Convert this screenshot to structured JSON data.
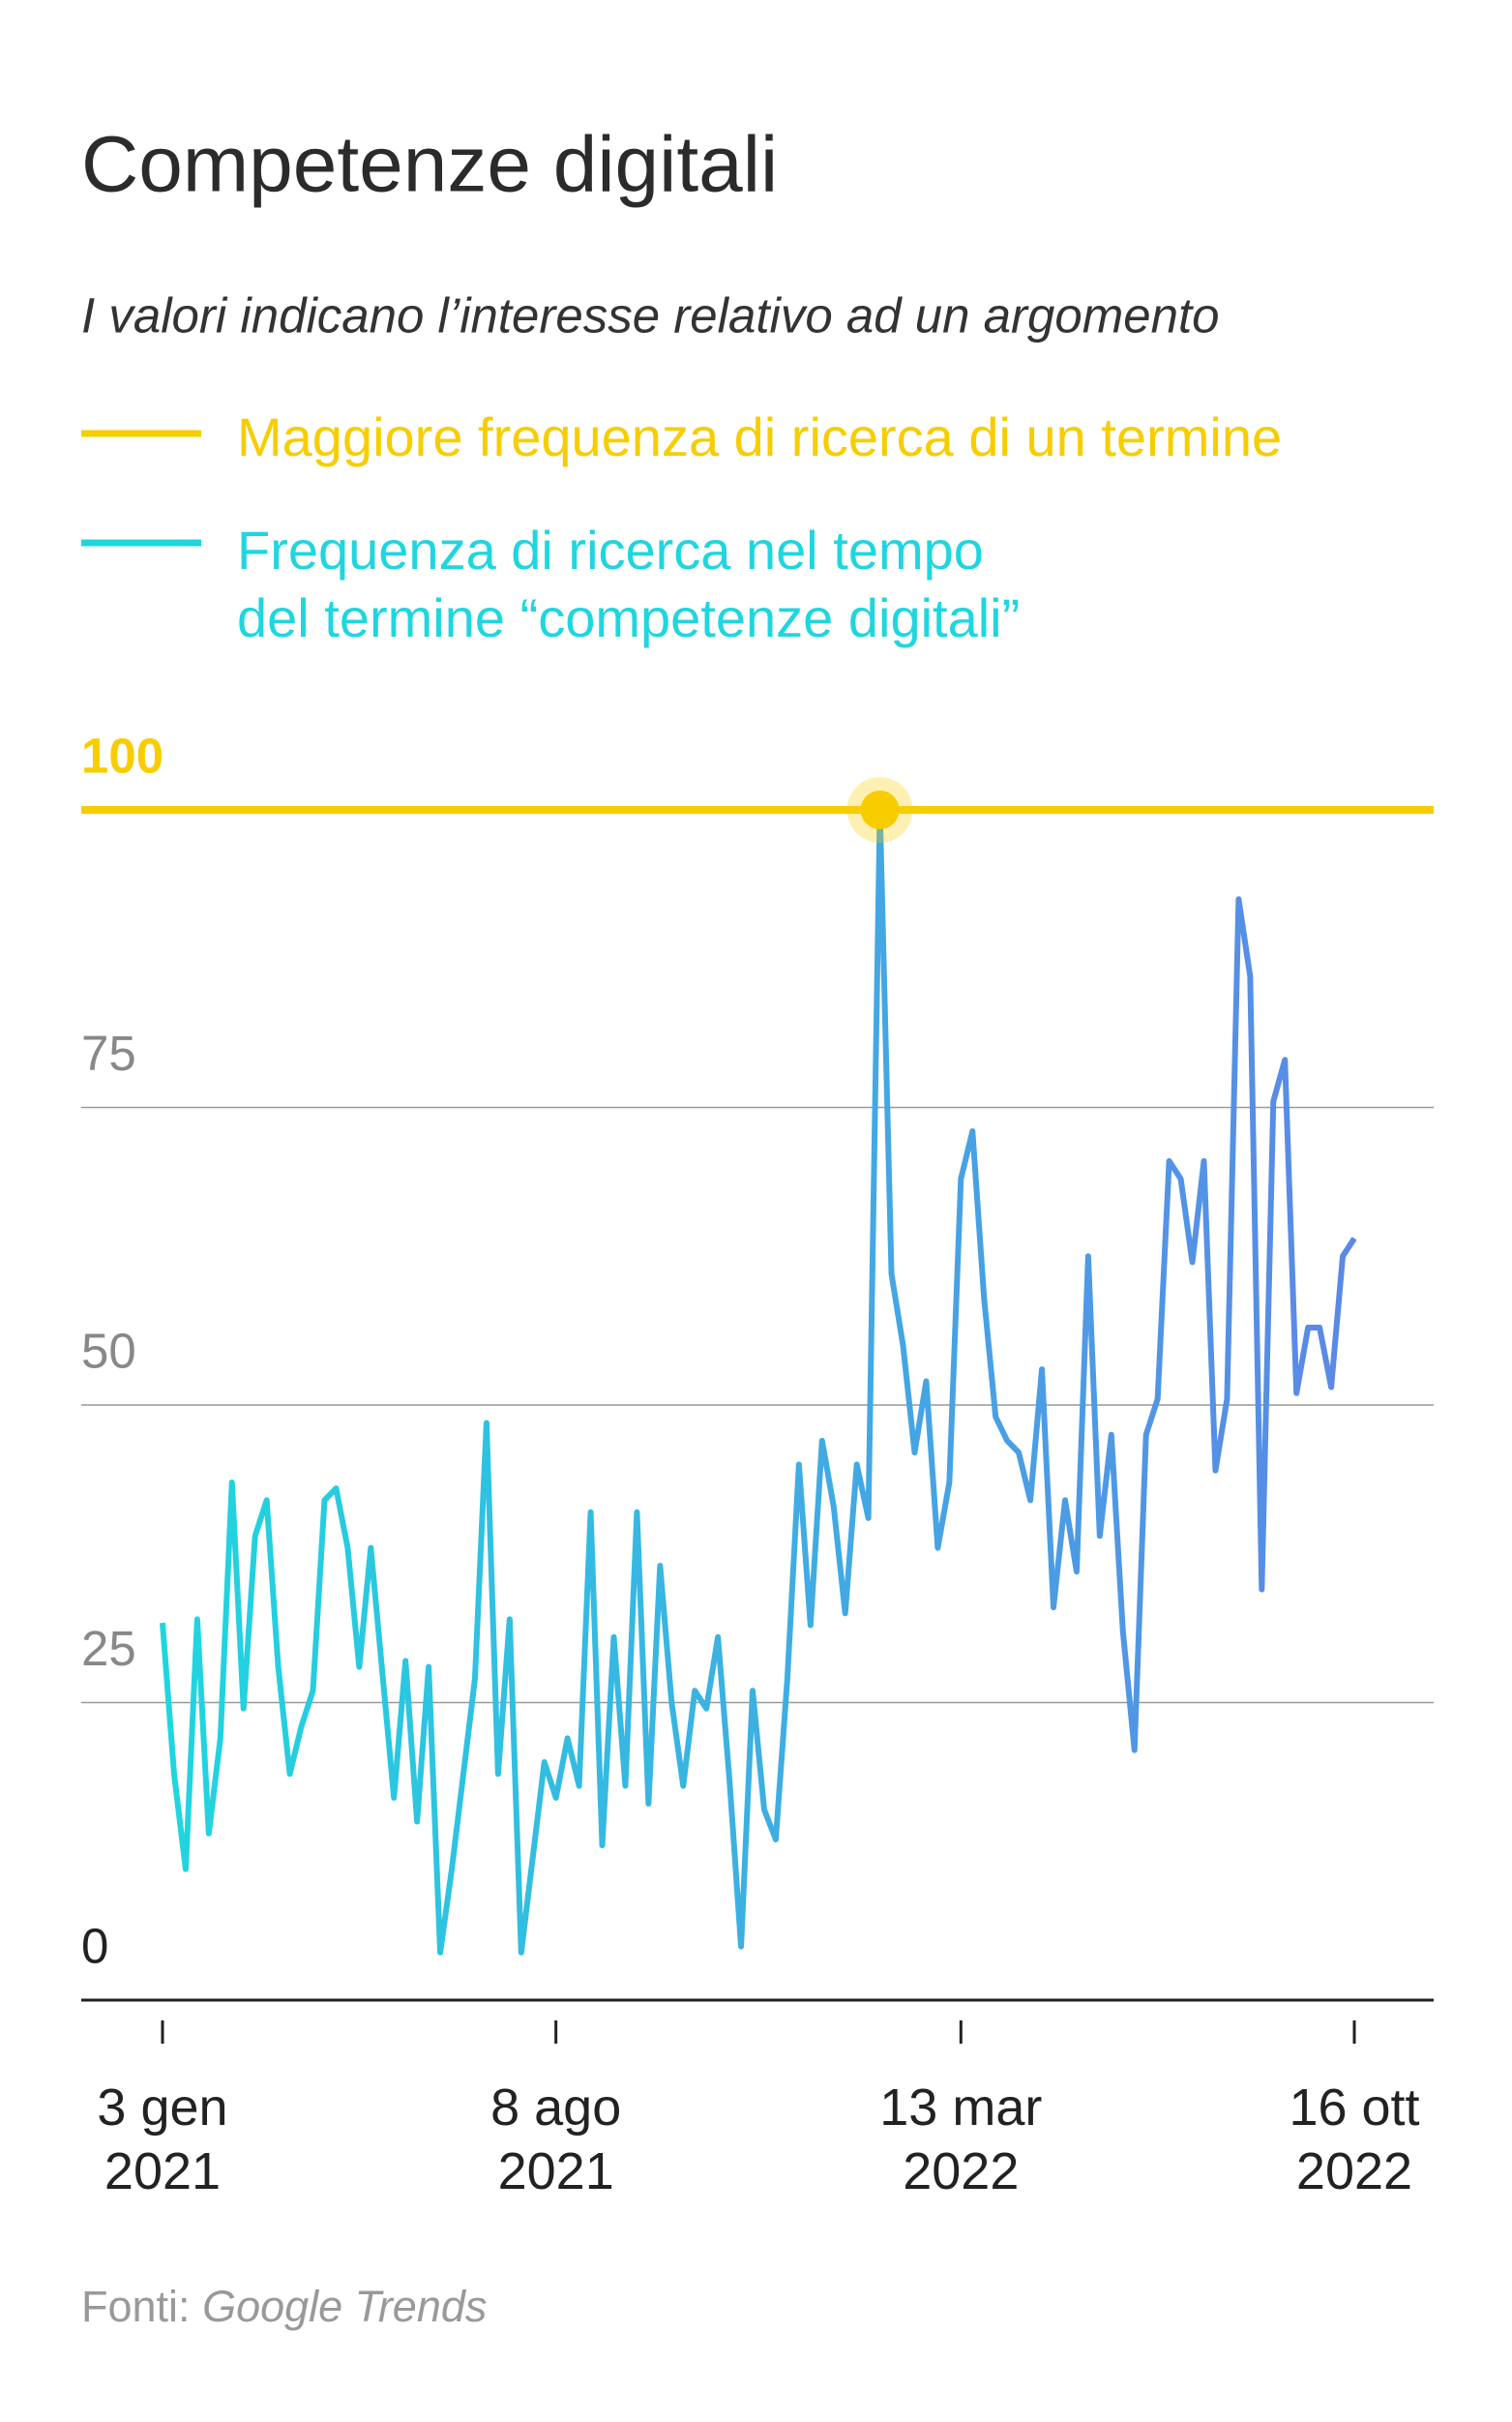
{
  "chart_data": {
    "type": "line",
    "title": "Competenze digitali",
    "subtitle": "I valori indicano l’interesse relativo ad un argomento",
    "reference_line": {
      "name": "Maggiore frequenza di ricerca di un termine",
      "value": 100,
      "color": "#f7cd00"
    },
    "categories": [
      "3 gen\n2021",
      null,
      null,
      null,
      null,
      null,
      null,
      null,
      null,
      null,
      null,
      null,
      null,
      null,
      null,
      null,
      null,
      null,
      null,
      null,
      null,
      null,
      null,
      null,
      null,
      null,
      null,
      null,
      null,
      null,
      null,
      null,
      null,
      null,
      "8 ago\n2021",
      null,
      null,
      null,
      null,
      null,
      null,
      null,
      null,
      null,
      null,
      null,
      null,
      null,
      null,
      null,
      null,
      null,
      null,
      null,
      null,
      null,
      null,
      null,
      null,
      null,
      null,
      null,
      null,
      null,
      null,
      null,
      null,
      null,
      null,
      "13 mar\n2022",
      null,
      null,
      null,
      null,
      null,
      null,
      null,
      null,
      null,
      null,
      null,
      null,
      null,
      null,
      null,
      null,
      null,
      null,
      null,
      null,
      null,
      null,
      null,
      null,
      null,
      null,
      null,
      null,
      null,
      null,
      null,
      null,
      null,
      "16 ott\n2022"
    ],
    "series": [
      {
        "name": "Frequenza di ricerca nel tempo\ndel termine “competenze digitali”",
        "colors": [
          "#1fd6df",
          "#5b88e6"
        ],
        "values": [
          31.7,
          19,
          11,
          32,
          14,
          22,
          43.5,
          24.5,
          39,
          42,
          28,
          19,
          23,
          26,
          42,
          43,
          38,
          28,
          38,
          27.5,
          17,
          28.5,
          15,
          28,
          4,
          11,
          19,
          27,
          48.5,
          19,
          32,
          4,
          12,
          20,
          17,
          22,
          18,
          41,
          13,
          30.5,
          18,
          41,
          16.5,
          36.5,
          25,
          18,
          26,
          24.5,
          30.5,
          18.5,
          4.5,
          26,
          16,
          13.5,
          27,
          45,
          31.5,
          47,
          41.5,
          32.5,
          45,
          40.5,
          100,
          61,
          55,
          46,
          52,
          38,
          43.5,
          69,
          73,
          59,
          49,
          47,
          46,
          42,
          53,
          33,
          42,
          36,
          62.5,
          39,
          47.5,
          31,
          21,
          47.5,
          50.5,
          70.5,
          69,
          62,
          70.5,
          44.5,
          50.5,
          92.5,
          86,
          34.5,
          75.5,
          79,
          51,
          56.5,
          56.5,
          51.5,
          62.5,
          64
        ]
      }
    ],
    "ylim": [
      0,
      100
    ],
    "yticks": [
      0,
      25,
      50,
      75,
      100
    ],
    "grid": true,
    "source": {
      "label": "Fonti:",
      "name": "Google Trends"
    }
  }
}
